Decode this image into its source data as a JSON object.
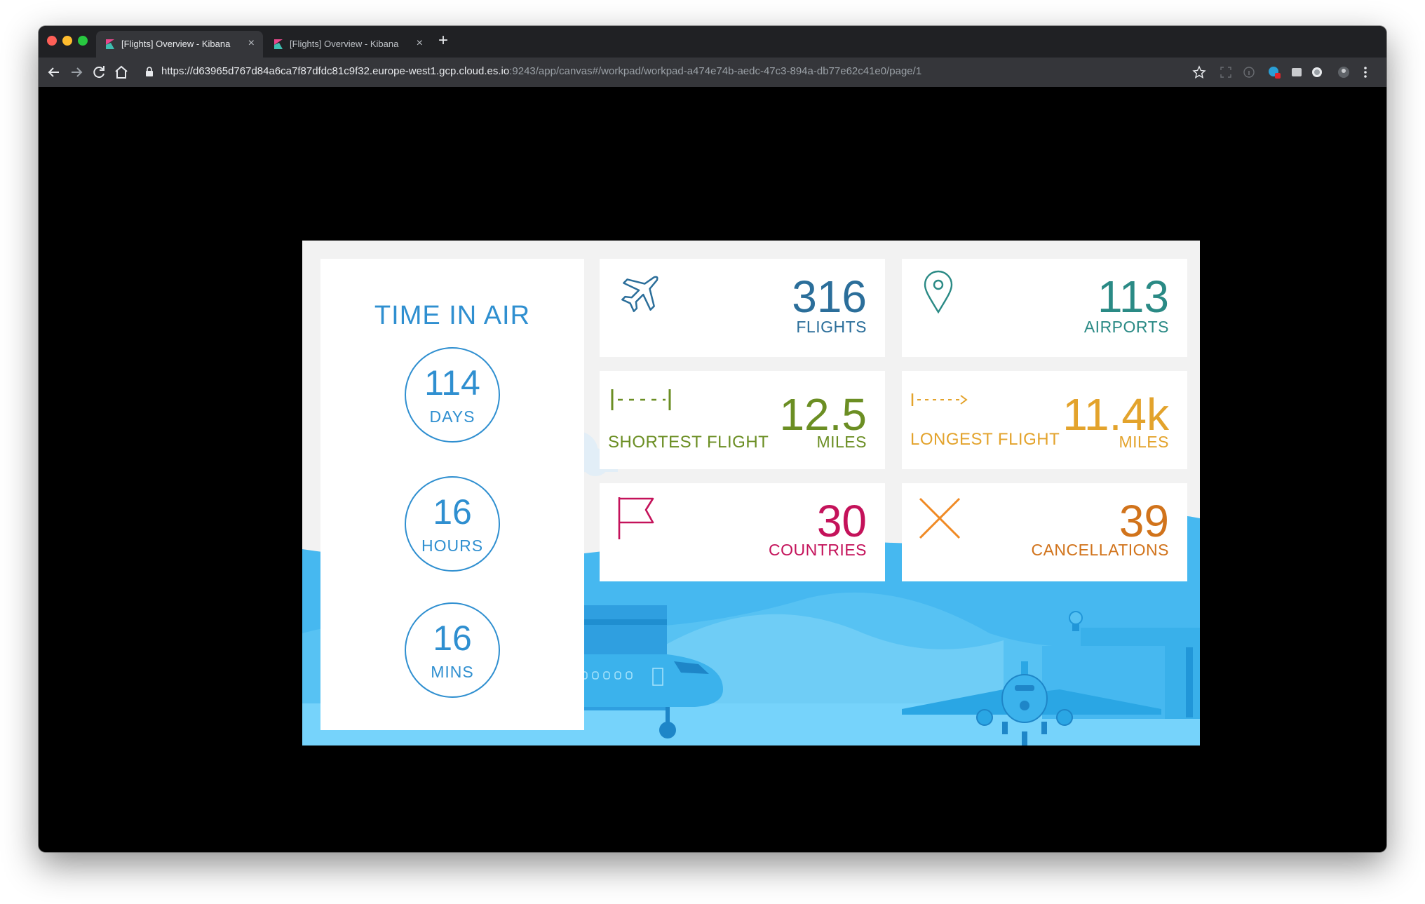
{
  "browser": {
    "tabs": [
      {
        "title": "[Flights] Overview - Kibana",
        "close": "×",
        "active": true
      },
      {
        "title": "[Flights] Overview - Kibana",
        "close": "×",
        "active": false
      }
    ],
    "new_tab": "+",
    "url": {
      "host": "https://d63965d767d84a6ca7f87dfdc81c9f32.europe-west1.gcp.cloud.es.io",
      "path": ":9243/app/canvas#/workpad/workpad-a474e74b-aedc-47c3-894a-db77e62c41e0/page/1"
    }
  },
  "workpad": {
    "time_in_air": {
      "title": "TIME IN AIR",
      "days": {
        "value": "114",
        "unit": "DAYS"
      },
      "hours": {
        "value": "16",
        "unit": "HOURS"
      },
      "mins": {
        "value": "16",
        "unit": "MINS"
      }
    },
    "flights": {
      "value": "316",
      "label": "FLIGHTS",
      "color": "#2b6e9a",
      "icon": "airplane-icon"
    },
    "airports": {
      "value": "113",
      "label": "AIRPORTS",
      "color": "#2a8a85",
      "icon": "map-pin-icon"
    },
    "shortest": {
      "value": "12.5",
      "label": "MILES",
      "title": "SHORTEST FLIGHT",
      "color": "#6b8e23",
      "icon": "short-distance-icon"
    },
    "longest": {
      "value": "11.4k",
      "label": "MILES",
      "title": "LONGEST FLIGHT",
      "color": "#e3a32c",
      "icon": "long-distance-icon"
    },
    "countries": {
      "value": "30",
      "label": "COUNTRIES",
      "color": "#c4125a",
      "icon": "flag-icon"
    },
    "cancellations": {
      "value": "39",
      "label": "CANCELLATIONS",
      "color": "#d1731b",
      "icon": "x-icon"
    }
  }
}
